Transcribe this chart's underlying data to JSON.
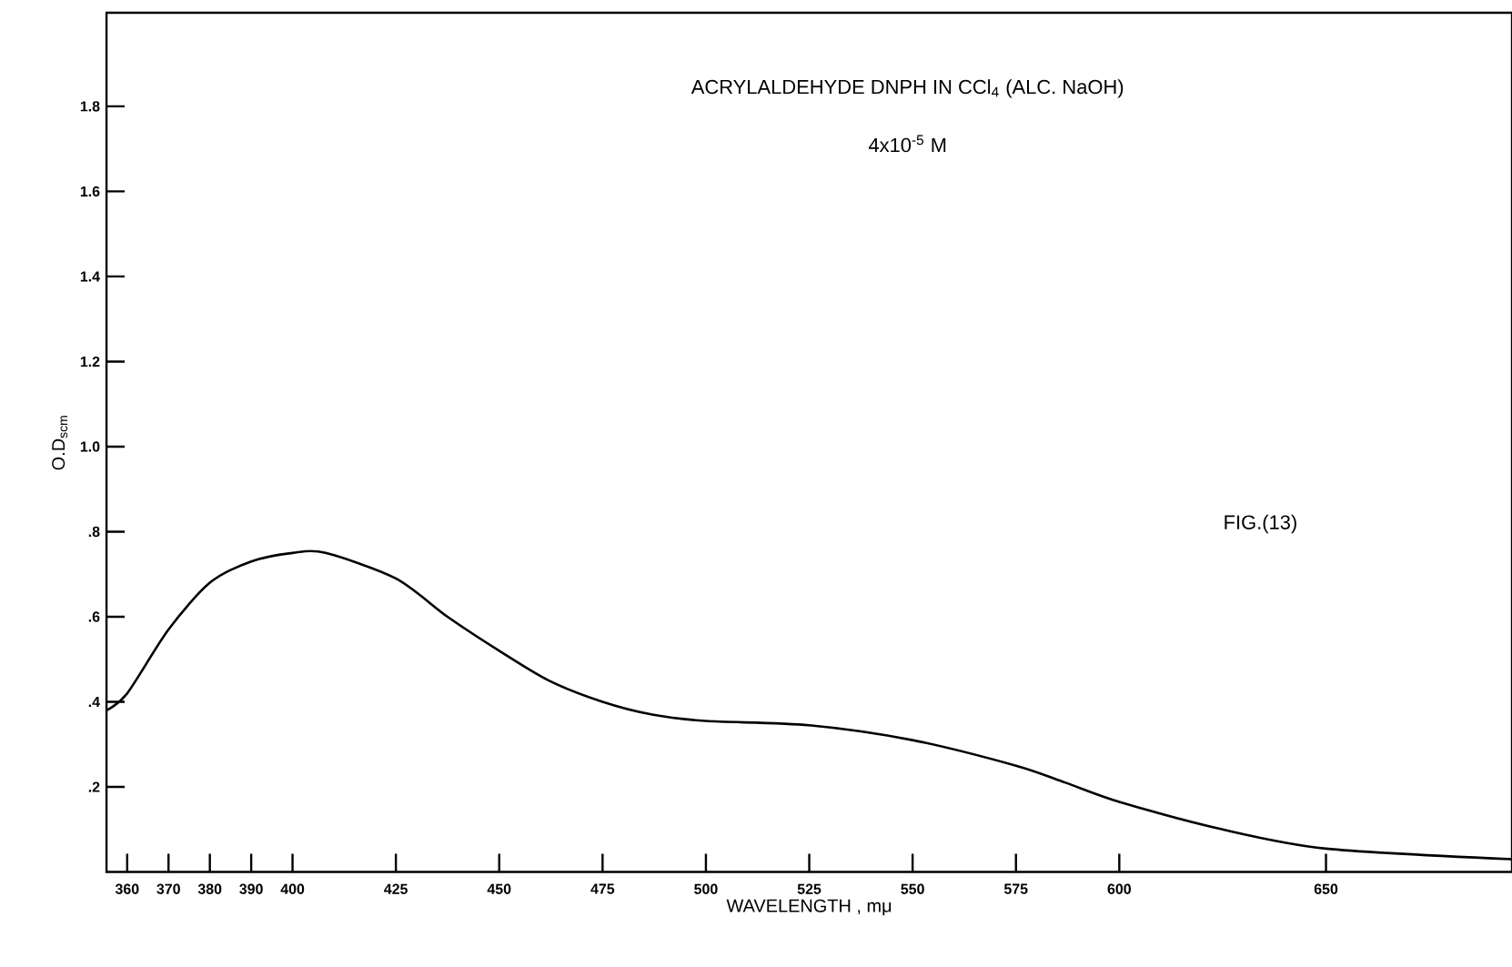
{
  "chart_data": {
    "type": "line",
    "title": "ACRYLALDEHYDE DNPH IN CCl$_{4}$ (ALC. NaOH)",
    "subtitle": "4x10$^{-5}$ M",
    "xlabel": "WAVELENGTH , mμ",
    "ylabel": "O.D$_{scm}$",
    "annotations": [
      "FIG.(13)"
    ],
    "xlim": [
      355,
      695
    ],
    "ylim": [
      0,
      2.02
    ],
    "xticks": [
      360,
      370,
      380,
      390,
      400,
      425,
      450,
      475,
      500,
      525,
      550,
      575,
      600,
      650
    ],
    "yticks": [
      {
        "value": 0.2,
        "label": ".2"
      },
      {
        "value": 0.4,
        "label": ".4"
      },
      {
        "value": 0.6,
        "label": ".6"
      },
      {
        "value": 0.8,
        "label": ".8"
      },
      {
        "value": 1.0,
        "label": "1.0"
      },
      {
        "value": 1.2,
        "label": "1.2"
      },
      {
        "value": 1.4,
        "label": "1.4"
      },
      {
        "value": 1.6,
        "label": "1.6"
      },
      {
        "value": 1.8,
        "label": "1.8"
      }
    ],
    "marker": "none",
    "series": [
      {
        "color": "#000000",
        "x": [
          355,
          360,
          370,
          380,
          390,
          400,
          408,
          425,
          437.5,
          450,
          462,
          475,
          487,
          500,
          525,
          550,
          575,
          587,
          600,
          625,
          650,
          695
        ],
        "values": [
          0.38,
          0.42,
          0.57,
          0.68,
          0.73,
          0.75,
          0.75,
          0.69,
          0.6,
          0.52,
          0.45,
          0.4,
          0.37,
          0.355,
          0.345,
          0.31,
          0.25,
          0.21,
          0.165,
          0.1,
          0.055,
          0.03
        ]
      }
    ]
  }
}
